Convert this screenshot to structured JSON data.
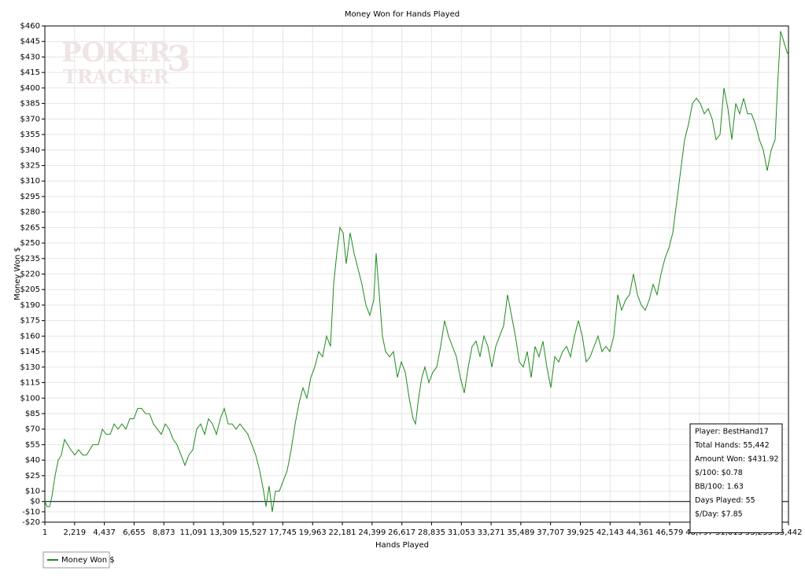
{
  "chart_data": {
    "type": "line",
    "title": "Money Won for Hands Played",
    "x_label": "Hands Played",
    "y_label": "Money Won $",
    "watermark": [
      "POKER",
      "TRACKER",
      "3"
    ],
    "xlim": [
      1,
      55442
    ],
    "ylim": [
      -20,
      460
    ],
    "grid": true,
    "xticks": [
      1,
      {
        "value": 2219,
        "label": "2,219"
      },
      {
        "value": 4437,
        "label": "4,437"
      },
      {
        "value": 6655,
        "label": "6,655"
      },
      {
        "value": 8873,
        "label": "8,873"
      },
      {
        "value": 11091,
        "label": "11,091"
      },
      {
        "value": 13309,
        "label": "13,309"
      },
      {
        "value": 15527,
        "label": "15,527"
      },
      {
        "value": 17745,
        "label": "17,745"
      },
      {
        "value": 19963,
        "label": "19,963"
      },
      {
        "value": 22181,
        "label": "22,181"
      },
      {
        "value": 24399,
        "label": "24,399"
      },
      {
        "value": 26617,
        "label": "26,617"
      },
      {
        "value": 28835,
        "label": "28,835"
      },
      {
        "value": 31053,
        "label": "31,053"
      },
      {
        "value": 33271,
        "label": "33,271"
      },
      {
        "value": 35489,
        "label": "35,489"
      },
      {
        "value": 37707,
        "label": "37,707"
      },
      {
        "value": 39925,
        "label": "39,925"
      },
      {
        "value": 42143,
        "label": "42,143"
      },
      {
        "value": 44361,
        "label": "44,361"
      },
      {
        "value": 46579,
        "label": "46,579"
      },
      {
        "value": 48797,
        "label": "48,797"
      },
      {
        "value": 51015,
        "label": "51,015"
      },
      {
        "value": 53233,
        "label": "53,233"
      },
      {
        "value": 55442,
        "label": "55,442"
      }
    ],
    "yticks": [
      {
        "value": 460,
        "label": "$460"
      },
      {
        "value": 445,
        "label": "$445"
      },
      {
        "value": 430,
        "label": "$430"
      },
      {
        "value": 415,
        "label": "$415"
      },
      {
        "value": 400,
        "label": "$400"
      },
      {
        "value": 385,
        "label": "$385"
      },
      {
        "value": 370,
        "label": "$370"
      },
      {
        "value": 355,
        "label": "$355"
      },
      {
        "value": 340,
        "label": "$340"
      },
      {
        "value": 325,
        "label": "$325"
      },
      {
        "value": 310,
        "label": "$310"
      },
      {
        "value": 295,
        "label": "$295"
      },
      {
        "value": 280,
        "label": "$280"
      },
      {
        "value": 265,
        "label": "$265"
      },
      {
        "value": 250,
        "label": "$250"
      },
      {
        "value": 235,
        "label": "$235"
      },
      {
        "value": 220,
        "label": "$220"
      },
      {
        "value": 205,
        "label": "$205"
      },
      {
        "value": 190,
        "label": "$190"
      },
      {
        "value": 175,
        "label": "$175"
      },
      {
        "value": 160,
        "label": "$160"
      },
      {
        "value": 145,
        "label": "$145"
      },
      {
        "value": 130,
        "label": "$130"
      },
      {
        "value": 115,
        "label": "$115"
      },
      {
        "value": 100,
        "label": "$100"
      },
      {
        "value": 85,
        "label": "$85"
      },
      {
        "value": 70,
        "label": "$70"
      },
      {
        "value": 55,
        "label": "$55"
      },
      {
        "value": 40,
        "label": "$40"
      },
      {
        "value": 25,
        "label": "$25"
      },
      {
        "value": 10,
        "label": "$10"
      },
      {
        "value": 0,
        "label": "$0"
      },
      {
        "value": -10,
        "label": "-$10"
      },
      {
        "value": -20,
        "label": "-$20"
      }
    ],
    "series": [
      {
        "name": "Money Won $",
        "color": "#1f8a1f",
        "x": [
          1,
          177,
          353,
          529,
          764,
          998,
          1233,
          1468,
          1702,
          1937,
          2230,
          2524,
          2817,
          3111,
          3580,
          3991,
          4284,
          4577,
          4871,
          5164,
          5457,
          5751,
          6044,
          6337,
          6631,
          6924,
          7217,
          7511,
          7804,
          8097,
          8391,
          8684,
          8977,
          9271,
          9564,
          9857,
          10151,
          10444,
          10738,
          11031,
          11324,
          11618,
          11911,
          12204,
          12498,
          12791,
          13084,
          13378,
          13671,
          13964,
          14258,
          14551,
          14845,
          15138,
          15431,
          15725,
          16018,
          16311,
          16487,
          16722,
          16957,
          17191,
          17485,
          17778,
          18071,
          18365,
          18658,
          18951,
          19245,
          19538,
          19831,
          20125,
          20418,
          20711,
          21005,
          21298,
          21533,
          21768,
          22002,
          22237,
          22472,
          22765,
          23058,
          23352,
          23645,
          23938,
          24232,
          24525,
          24701,
          24936,
          25170,
          25405,
          25698,
          25992,
          26285,
          26579,
          26872,
          27165,
          27459,
          27635,
          27869,
          28104,
          28339,
          28632,
          28925,
          29219,
          29512,
          29805,
          30099,
          30392,
          30685,
          30979,
          31272,
          31565,
          31859,
          32152,
          32445,
          32739,
          33032,
          33326,
          33619,
          33912,
          34206,
          34499,
          34792,
          35086,
          35379,
          35672,
          35966,
          36259,
          36552,
          36846,
          37139,
          37432,
          37726,
          38019,
          38313,
          38606,
          38899,
          39193,
          39486,
          39779,
          40073,
          40366,
          40659,
          40953,
          41246,
          41539,
          41833,
          42126,
          42419,
          42713,
          43006,
          43299,
          43593,
          43886,
          44180,
          44473,
          44766,
          45060,
          45353,
          45646,
          45940,
          46233,
          46526,
          46820,
          47113,
          47406,
          47700,
          47993,
          48286,
          48580,
          48873,
          49166,
          49460,
          49753,
          50047,
          50340,
          50633,
          50927,
          51220,
          51513,
          51807,
          52100,
          52393,
          52687,
          52980,
          53273,
          53567,
          53860,
          54153,
          54447,
          54623,
          54857,
          55092,
          55325,
          55442
        ],
        "values": [
          0,
          -5,
          -5,
          5,
          25,
          40,
          45,
          60,
          55,
          50,
          45,
          50,
          45,
          45,
          55,
          55,
          70,
          65,
          65,
          75,
          70,
          75,
          70,
          80,
          80,
          90,
          90,
          85,
          85,
          75,
          70,
          65,
          75,
          70,
          60,
          55,
          45,
          35,
          45,
          50,
          70,
          75,
          65,
          80,
          75,
          65,
          80,
          90,
          75,
          75,
          70,
          75,
          70,
          65,
          55,
          45,
          30,
          10,
          -5,
          15,
          -10,
          10,
          10,
          20,
          30,
          50,
          75,
          95,
          110,
          100,
          120,
          130,
          145,
          140,
          160,
          150,
          210,
          240,
          265,
          260,
          230,
          260,
          240,
          225,
          210,
          190,
          180,
          195,
          240,
          200,
          160,
          145,
          140,
          145,
          120,
          135,
          125,
          100,
          80,
          75,
          100,
          120,
          130,
          115,
          125,
          130,
          150,
          175,
          160,
          150,
          140,
          120,
          105,
          130,
          150,
          155,
          140,
          160,
          150,
          130,
          150,
          160,
          170,
          200,
          180,
          160,
          135,
          130,
          145,
          120,
          150,
          140,
          155,
          130,
          110,
          140,
          135,
          145,
          150,
          140,
          160,
          175,
          160,
          135,
          140,
          150,
          160,
          145,
          150,
          145,
          160,
          200,
          185,
          195,
          200,
          220,
          200,
          190,
          185,
          195,
          210,
          200,
          220,
          235,
          245,
          260,
          290,
          320,
          350,
          365,
          385,
          390,
          385,
          375,
          380,
          370,
          350,
          355,
          400,
          380,
          350,
          385,
          375,
          390,
          375,
          375,
          365,
          350,
          340,
          320,
          340,
          350,
          400,
          455,
          445,
          435,
          432
        ]
      }
    ],
    "legend": "bottom-left",
    "annotations": [
      "Player: BestHand17",
      "Total Hands: 55,442",
      "Amount Won: $431.92",
      "$/100: $0.78",
      "BB/100: 1.63",
      "Days Played: 55",
      "$/Day: $7.85"
    ]
  }
}
